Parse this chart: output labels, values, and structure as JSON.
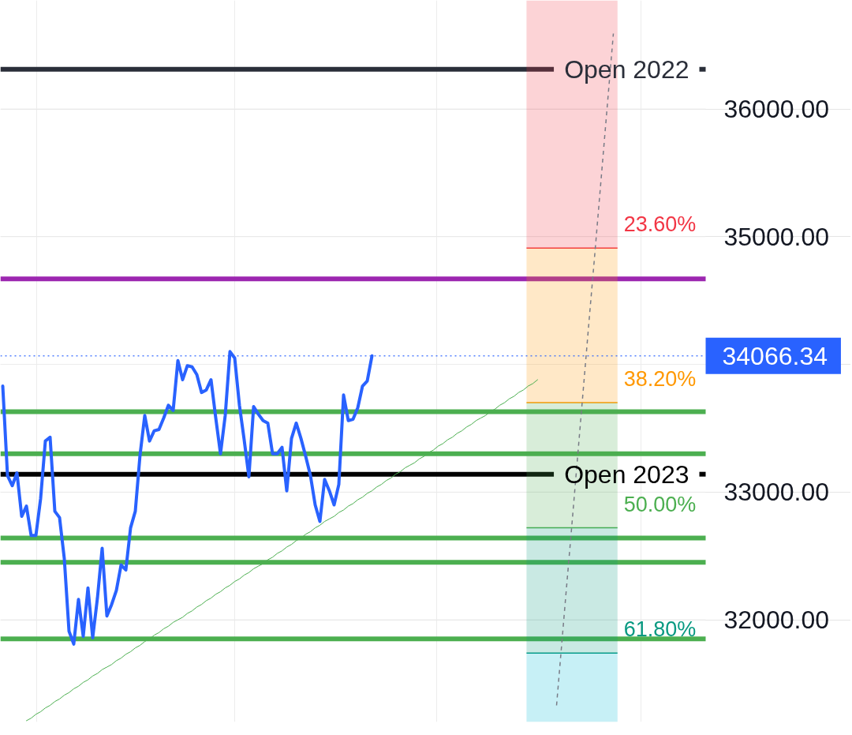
{
  "chart_data": {
    "type": "line",
    "categories": [
      null,
      null,
      null,
      null,
      null,
      null,
      null,
      null,
      null,
      null,
      null,
      null,
      null,
      null,
      null,
      null,
      null,
      null,
      null,
      null,
      null,
      null,
      null,
      null,
      null,
      null,
      null,
      null,
      null,
      null,
      null,
      null,
      null,
      null,
      null,
      null,
      null,
      null,
      null,
      null,
      null,
      null,
      null,
      null,
      null,
      null,
      null,
      null,
      null,
      null,
      null,
      null,
      null,
      null,
      null,
      null,
      null,
      null,
      null,
      null,
      null,
      null,
      null,
      null,
      null,
      null,
      null,
      null,
      null,
      null,
      null,
      null,
      null,
      null,
      null,
      null,
      null,
      null,
      null,
      null,
      null,
      null,
      null,
      null,
      null,
      null,
      null,
      null,
      null,
      null,
      null,
      null,
      null,
      null,
      null,
      null,
      null,
      null,
      null,
      null,
      null,
      null,
      null,
      null,
      null,
      null,
      null,
      null,
      null,
      null,
      null,
      null,
      null,
      null,
      null,
      null,
      null,
      null,
      null,
      null,
      null,
      null,
      null,
      null,
      null,
      null,
      null,
      null,
      null,
      null,
      null,
      null,
      null,
      null,
      null,
      null,
      null,
      null,
      null,
      null,
      null,
      null,
      null,
      null,
      null,
      null,
      null,
      null,
      null
    ],
    "series": [
      {
        "color": "#4caf50",
        "values": [
          null,
          null,
          null,
          null,
          null,
          31210,
          31230,
          31260,
          31280,
          31310,
          31330,
          31360,
          31380,
          31410,
          31430,
          31460,
          31480,
          31510,
          31530,
          31560,
          31580,
          31610,
          31630,
          31650,
          31680,
          31700,
          31730,
          31750,
          31780,
          31800,
          31830,
          31850,
          31880,
          31900,
          31930,
          31950,
          31980,
          32000,
          32020,
          32050,
          32070,
          32100,
          32120,
          32150,
          32170,
          32200,
          32220,
          32250,
          32270,
          32300,
          32320,
          32350,
          32370,
          32400,
          32420,
          32440,
          32470,
          32490,
          32520,
          32540,
          32570,
          32590,
          32620,
          32640,
          32670,
          32690,
          32720,
          32740,
          32770,
          32790,
          32810,
          32840,
          32860,
          32890,
          32910,
          32940,
          32960,
          32990,
          33010,
          33040,
          33060,
          33090,
          33110,
          33140,
          33160,
          33190,
          33210,
          33230,
          33260,
          33280,
          33310,
          33330,
          33360,
          33380,
          33410,
          33430,
          33460,
          33480,
          33510,
          33530,
          33560,
          33580,
          33600,
          33630,
          33650,
          33680,
          33700,
          33730,
          33750,
          33780,
          33800,
          33830,
          33850,
          33880,
          null,
          null,
          null,
          null,
          null,
          null,
          null,
          null,
          null,
          null,
          null,
          null,
          null,
          null,
          null,
          null,
          null,
          null,
          null,
          null,
          null,
          null,
          null,
          null,
          null,
          null,
          null,
          null,
          null,
          null,
          null,
          null,
          null,
          null,
          null
        ]
      },
      {
        "color": "#787b86",
        "line_style": "dashed",
        "values": [
          null,
          null,
          null,
          null,
          null,
          null,
          null,
          null,
          null,
          null,
          null,
          null,
          null,
          null,
          null,
          null,
          null,
          null,
          null,
          null,
          null,
          null,
          null,
          null,
          null,
          null,
          null,
          null,
          null,
          null,
          null,
          null,
          null,
          null,
          null,
          null,
          null,
          null,
          null,
          null,
          null,
          null,
          null,
          null,
          null,
          null,
          null,
          null,
          null,
          null,
          null,
          null,
          null,
          null,
          null,
          null,
          null,
          null,
          null,
          null,
          null,
          null,
          null,
          null,
          null,
          null,
          null,
          null,
          null,
          null,
          null,
          null,
          null,
          null,
          null,
          null,
          null,
          null,
          null,
          null,
          null,
          null,
          null,
          null,
          null,
          null,
          null,
          null,
          null,
          null,
          null,
          null,
          null,
          null,
          null,
          null,
          null,
          null,
          null,
          null,
          null,
          null,
          null,
          null,
          null,
          null,
          null,
          null,
          null,
          null,
          null,
          null,
          null,
          null,
          null,
          null,
          null,
          31330,
          31770,
          32210,
          32640,
          33080,
          33520,
          33960,
          34400,
          34830,
          35270,
          35710,
          36150,
          36590,
          null,
          null,
          null,
          null,
          null,
          null,
          null,
          null,
          null,
          null,
          null,
          null,
          null,
          null,
          null,
          null,
          null,
          null,
          null
        ]
      },
      {
        "color": "#2962ff",
        "values": [
          33830,
          33130,
          33050,
          33150,
          32810,
          32890,
          32660,
          32660,
          32950,
          33400,
          33430,
          32850,
          32800,
          32480,
          31910,
          31810,
          32160,
          31870,
          32250,
          31860,
          32170,
          32560,
          32030,
          32120,
          32230,
          32430,
          32390,
          32720,
          32850,
          33290,
          33600,
          33400,
          33480,
          33490,
          33580,
          33680,
          33640,
          34030,
          33880,
          33990,
          33980,
          33920,
          33780,
          33800,
          33880,
          33580,
          33300,
          33600,
          34100,
          34050,
          33680,
          33410,
          33120,
          33670,
          33610,
          33560,
          33540,
          33300,
          33300,
          33350,
          33010,
          33420,
          33540,
          33420,
          33280,
          33130,
          32900,
          32770,
          33100,
          33010,
          32900,
          33060,
          33760,
          33560,
          33570,
          33660,
          33830,
          33870,
          34066.34,
          null,
          null,
          null,
          null,
          null,
          null,
          null,
          null,
          null,
          null,
          null,
          null,
          null,
          null,
          null,
          null,
          null,
          null,
          null,
          null,
          null,
          null,
          null,
          null,
          null,
          null,
          null,
          null,
          null,
          null,
          null,
          null,
          null,
          null,
          null,
          null,
          null,
          null,
          null,
          null,
          null,
          null,
          null,
          null,
          null,
          null,
          null,
          null,
          null,
          null,
          null,
          null,
          null,
          null,
          null,
          null,
          null,
          null,
          null,
          null,
          null,
          null,
          null,
          null,
          null,
          null,
          null,
          null,
          null,
          null
        ]
      }
    ],
    "ylim": [
      31200,
      36850
    ],
    "yticks": [
      {
        "value": 32000,
        "label": "32000.00"
      },
      {
        "value": 33000,
        "label": "33000.00"
      },
      {
        "value": 34000,
        "label": null
      },
      {
        "value": 35000,
        "label": "35000.00"
      },
      {
        "value": 36000,
        "label": "36000.00"
      }
    ],
    "ref_lines": [
      {
        "axis": "y",
        "value": 36310,
        "label": "Open 2022",
        "color": "#2a2e39"
      },
      {
        "axis": "y",
        "value": 34670,
        "color": "#9c27b0"
      },
      {
        "axis": "y",
        "value": 33630,
        "color": "#4caf50"
      },
      {
        "axis": "y",
        "value": 33300,
        "color": "#4caf50"
      },
      {
        "axis": "y",
        "value": 33140,
        "label": "Open 2023",
        "color": "#000000"
      },
      {
        "axis": "y",
        "value": 32640,
        "color": "#4caf50"
      },
      {
        "axis": "y",
        "value": 32450,
        "color": "#4caf50"
      },
      {
        "axis": "y",
        "value": 31850,
        "color": "#4caf50"
      },
      {
        "axis": "y",
        "value": 34066.34,
        "label": "34066.34",
        "color": "#2962ff",
        "line_style": "dotted"
      }
    ],
    "bands": [
      {
        "axis": "y",
        "from": 34910,
        "to": 36850,
        "label": "23.60%",
        "color": "#f23645"
      },
      {
        "axis": "y",
        "from": 33700,
        "to": 34910,
        "label": "38.20%",
        "color": "#ff9800"
      },
      {
        "axis": "y",
        "from": 32720,
        "to": 33700,
        "label": "50.00%",
        "color": "#4caf50"
      },
      {
        "axis": "y",
        "from": 31740,
        "to": 32720,
        "label": "61.80%",
        "color": "#089981"
      },
      {
        "axis": "y",
        "from": 31200,
        "to": 31740,
        "color": "#00bcd4"
      }
    ],
    "grid": true,
    "tick_labels": "y"
  }
}
